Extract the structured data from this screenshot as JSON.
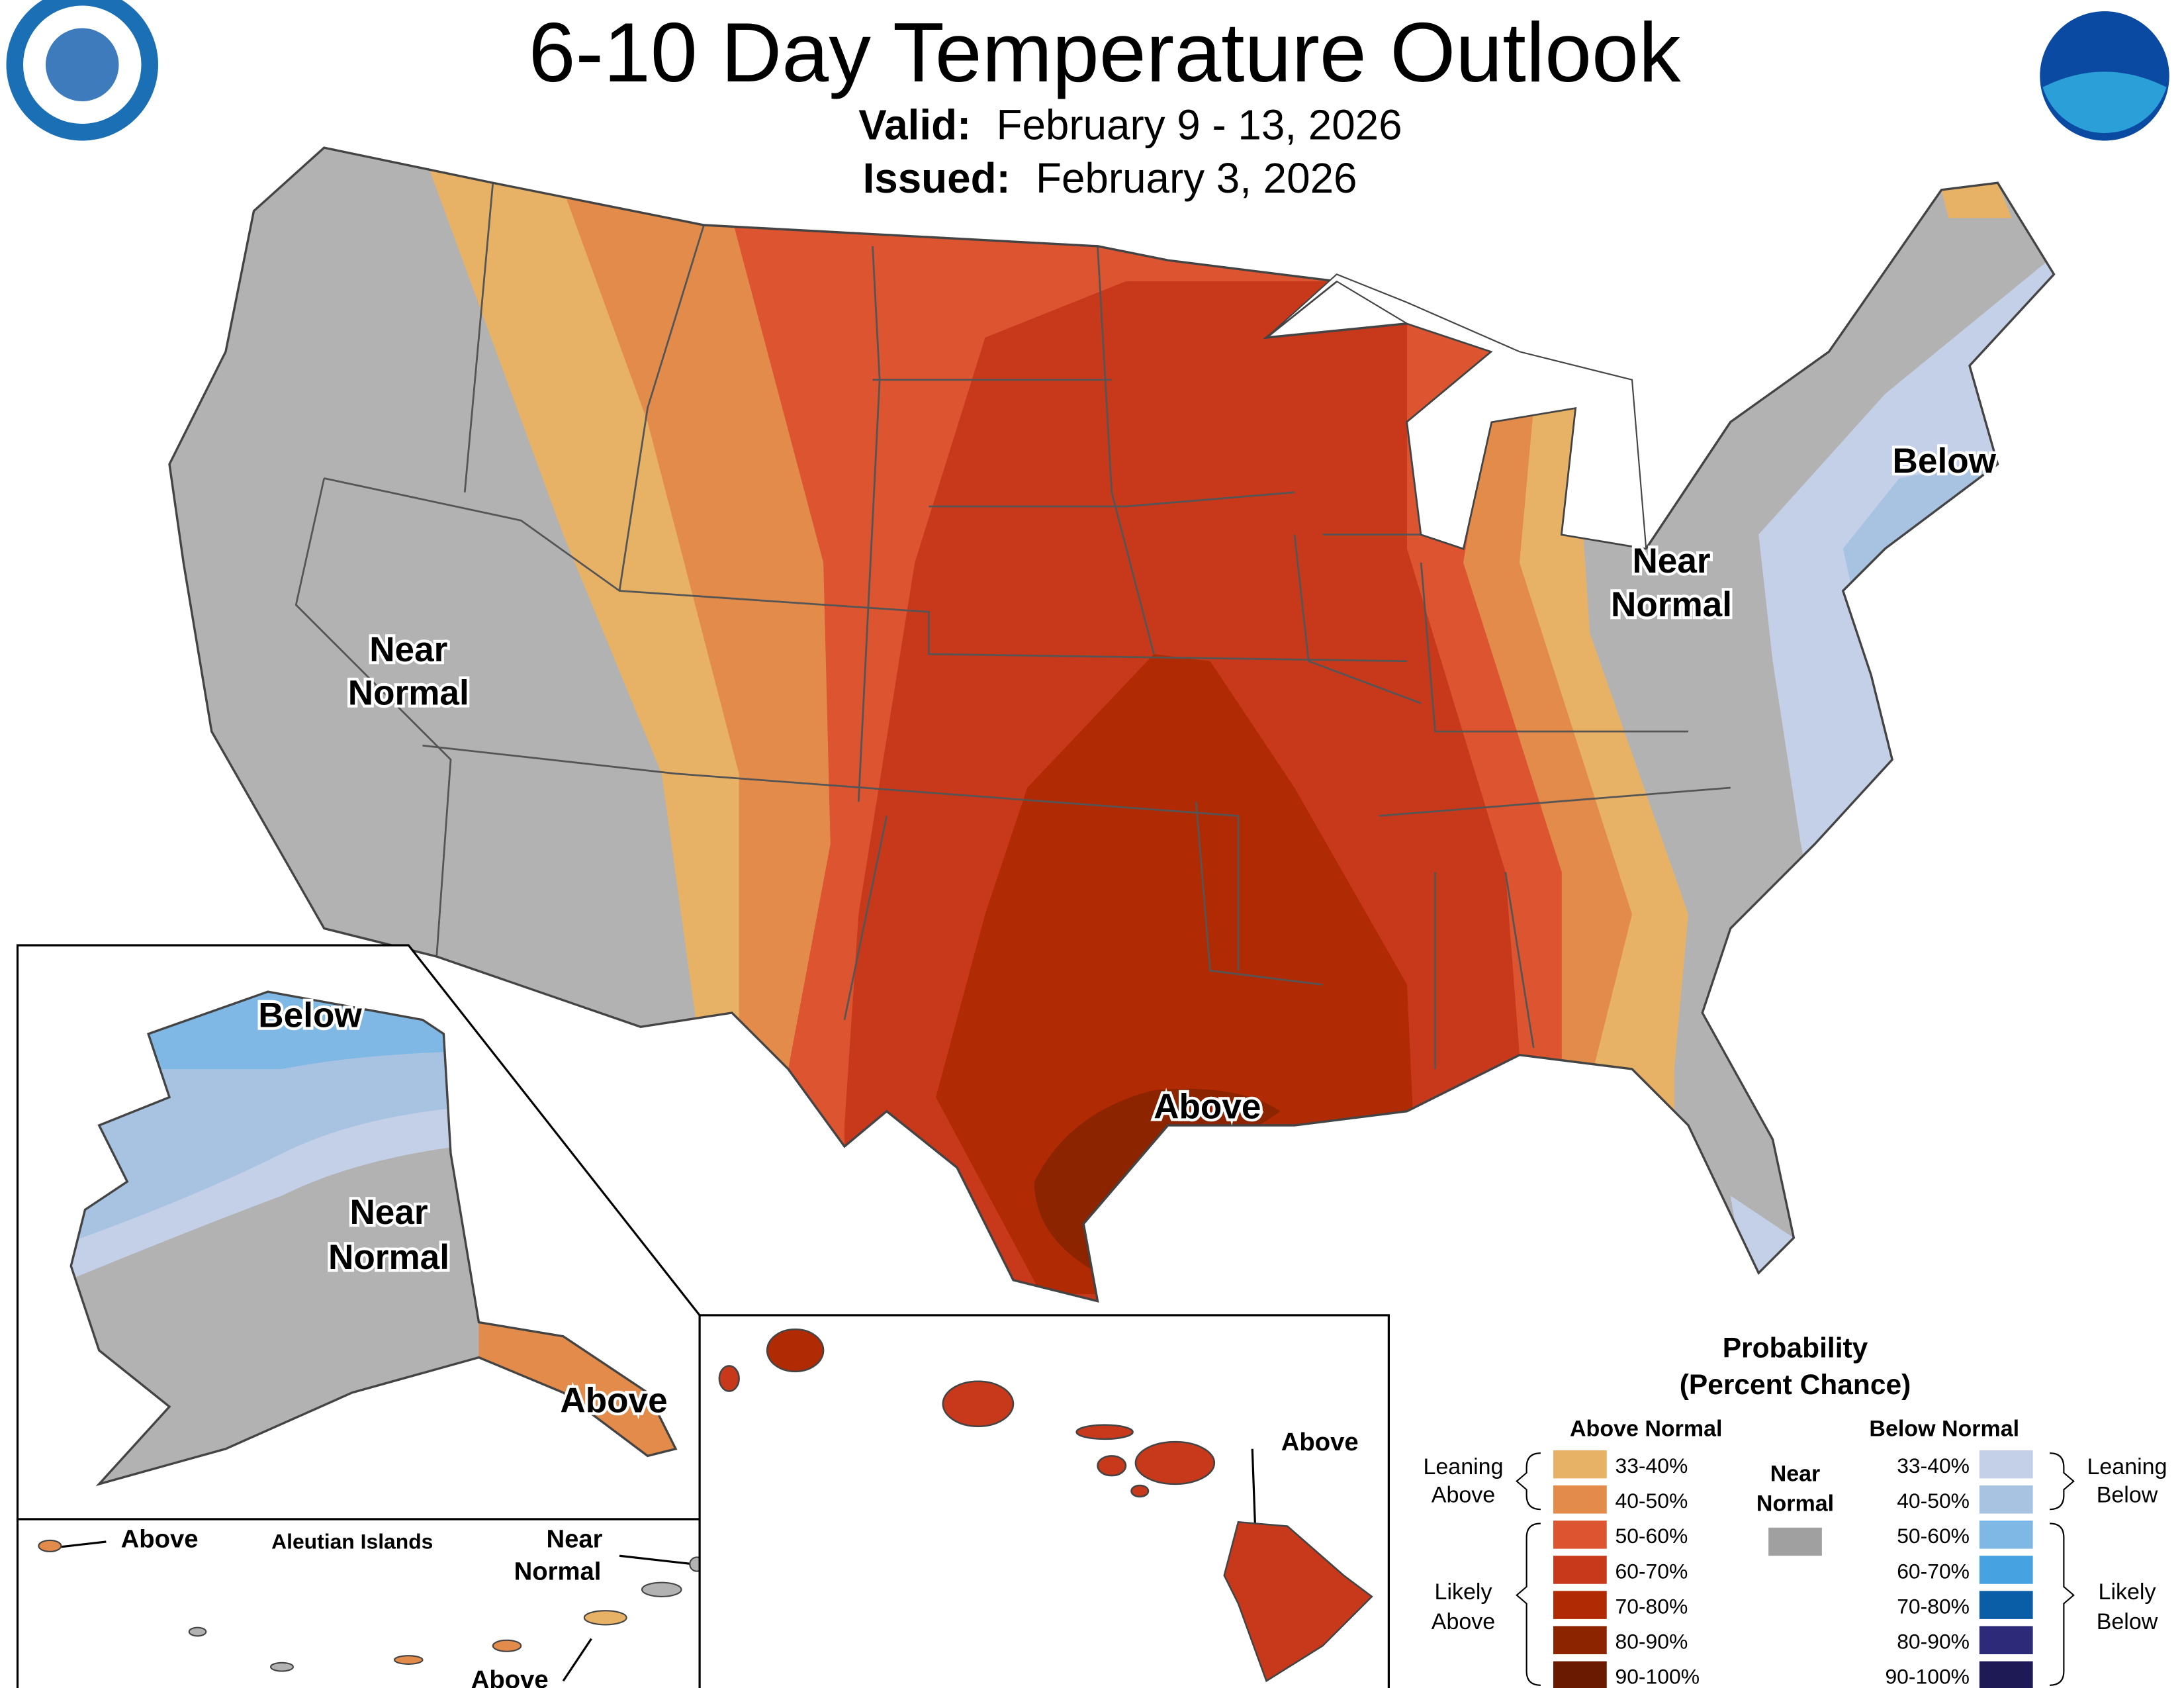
{
  "header": {
    "title": "6-10 Day Temperature Outlook",
    "valid_label": "Valid:",
    "valid_dates": "February 9 - 13, 2026",
    "issued_label": "Issued:",
    "issued_date": "February 3, 2026"
  },
  "map_labels": {
    "conus_west": [
      "Near",
      "Normal"
    ],
    "conus_east": [
      "Near",
      "Normal"
    ],
    "conus_below": "Below",
    "conus_above": "Above",
    "alaska_below": "Below",
    "alaska_near": [
      "Near",
      "Normal"
    ],
    "alaska_above": "Above",
    "aleutian_title": "Aleutian Islands",
    "aleutian_above_west": "Above",
    "aleutian_near": [
      "Near",
      "Normal"
    ],
    "aleutian_above_east": "Above",
    "hawaii_above": "Above"
  },
  "legend": {
    "title": [
      "Probability",
      "(Percent Chance)"
    ],
    "above_header": "Above Normal",
    "below_header": "Below Normal",
    "near_header": [
      "Near",
      "Normal"
    ],
    "near_color": "#a0a0a0",
    "above": [
      {
        "range": "33-40%",
        "color": "#e8b266"
      },
      {
        "range": "40-50%",
        "color": "#e38b4a"
      },
      {
        "range": "50-60%",
        "color": "#dc5430"
      },
      {
        "range": "60-70%",
        "color": "#c8381b"
      },
      {
        "range": "70-80%",
        "color": "#b02a04"
      },
      {
        "range": "80-90%",
        "color": "#8c2400"
      },
      {
        "range": "90-100%",
        "color": "#6a1a00"
      }
    ],
    "below": [
      {
        "range": "33-40%",
        "color": "#c4cfe8"
      },
      {
        "range": "40-50%",
        "color": "#a8c3e2"
      },
      {
        "range": "50-60%",
        "color": "#7fb8e5"
      },
      {
        "range": "60-70%",
        "color": "#46a2e0"
      },
      {
        "range": "70-80%",
        "color": "#0a5ea8"
      },
      {
        "range": "80-90%",
        "color": "#2e2a7a"
      },
      {
        "range": "90-100%",
        "color": "#1e1a55"
      }
    ],
    "leaning_above": [
      "Leaning",
      "Above"
    ],
    "likely_above": [
      "Likely",
      "Above"
    ],
    "leaning_below": [
      "Leaning",
      "Below"
    ],
    "likely_below": [
      "Likely",
      "Below"
    ]
  }
}
